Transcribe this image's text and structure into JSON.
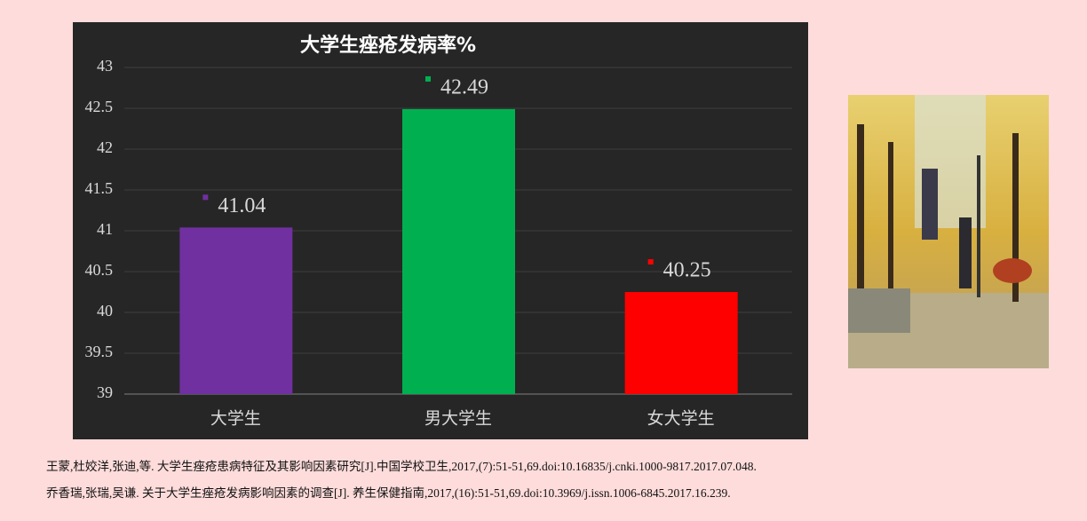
{
  "chart_data": {
    "type": "bar",
    "title": "大学生痤疮发病率%",
    "categories": [
      "大学生",
      "男大学生",
      "女大学生"
    ],
    "series": [
      {
        "name": null,
        "colors": [
          "#7030a0",
          "#00b050",
          "#ff0000"
        ],
        "values": [
          41.04,
          42.49,
          40.25
        ]
      }
    ],
    "ylim": [
      39,
      43
    ],
    "yticks": [
      39,
      39.5,
      40,
      40.5,
      41,
      41.5,
      42,
      42.5,
      43
    ],
    "grid": true
  },
  "references": [
    "王蒙,杜姣洋,张迪,等. 大学生痤疮患病特征及其影响因素研究[J].中国学校卫生,2017,(7):51-51,69.doi:10.16835/j.cnki.1000-9817.2017.07.048.",
    "乔香瑞,张瑞,吴谦. 关于大学生痤疮发病影响因素的调查[J]. 养生保健指南,2017,(16):51-51,69.doi:10.3969/j.issn.1006-6845.2017.16.239."
  ]
}
